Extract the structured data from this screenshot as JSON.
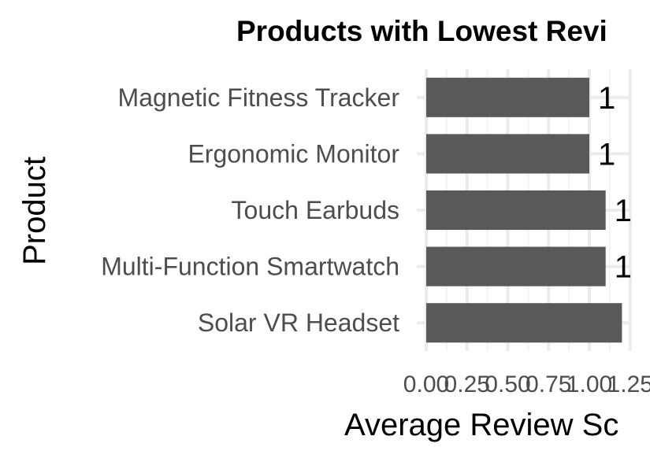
{
  "chart_data": {
    "type": "bar",
    "orientation": "horizontal",
    "title": "Products with Lowest Revi",
    "xlabel": "Average Review Sc",
    "ylabel": "Product",
    "categories": [
      "Magnetic Fitness Tracker",
      "Ergonomic Monitor",
      "Touch Earbuds",
      "Multi-Function Smartwatch",
      "Solar VR Headset"
    ],
    "values": [
      1.0,
      1.0,
      1.1,
      1.1,
      1.2
    ],
    "data_labels": [
      "1",
      "1",
      "1",
      "1",
      ""
    ],
    "xlim": [
      0,
      1.25
    ],
    "x_ticks": [
      "0.00",
      "0.25",
      "0.50",
      "0.75",
      "1.00",
      "1.25"
    ],
    "grid": true,
    "legend": "none",
    "colors": {
      "bar": "#595959",
      "grid_major": "#ebebeb",
      "grid_minor": "#f3f3f3",
      "text_axis": "#4d4d4d"
    }
  }
}
